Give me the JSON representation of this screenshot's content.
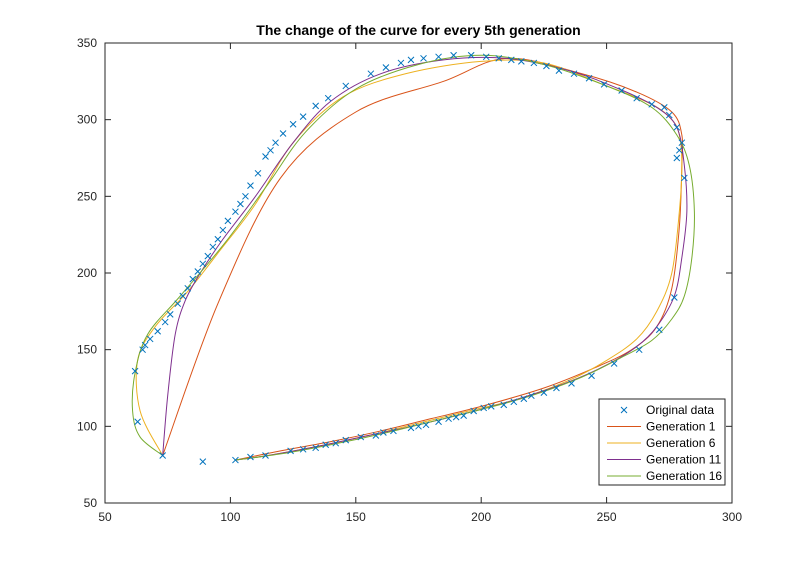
{
  "chart_data": {
    "type": "line",
    "title": "The change of the curve for every 5th generation",
    "xlabel": "",
    "ylabel": "",
    "xlim": [
      50,
      300
    ],
    "ylim": [
      50,
      350
    ],
    "xticks": [
      50,
      100,
      150,
      200,
      250,
      300
    ],
    "yticks": [
      50,
      100,
      150,
      200,
      250,
      300,
      350
    ],
    "grid": false,
    "legend_position": "bottom-right",
    "original_data": {
      "name": "Original data",
      "color": "#0072BD",
      "marker": "x",
      "x": [
        89,
        102,
        108,
        114,
        124,
        129,
        134,
        138,
        142,
        146,
        152,
        158,
        161,
        165,
        172,
        175,
        178,
        183,
        187,
        190,
        193,
        197,
        201,
        204,
        209,
        213,
        217,
        220,
        225,
        230,
        236,
        244,
        253,
        263,
        271,
        277,
        278,
        279,
        280,
        281,
        278,
        275,
        273,
        268,
        262,
        256,
        249,
        243,
        237,
        231,
        226,
        221,
        216,
        212,
        207,
        202,
        196,
        189,
        183,
        177,
        172,
        168,
        162,
        156,
        146,
        139,
        134,
        129,
        125,
        121,
        118,
        116,
        114,
        111,
        108,
        106,
        104,
        102,
        99,
        97,
        95,
        93,
        91,
        89,
        87,
        85,
        83,
        81,
        79,
        76,
        74,
        71,
        68,
        66,
        65,
        62,
        63,
        73
      ],
      "y": [
        77,
        78,
        80,
        81,
        84,
        85,
        86,
        88,
        89,
        91,
        93,
        94,
        96,
        97,
        99,
        100,
        101,
        103,
        105,
        106,
        107,
        110,
        112,
        113,
        114,
        116,
        118,
        120,
        122,
        125,
        128,
        133,
        141,
        150,
        163,
        184,
        275,
        280,
        285,
        262,
        295,
        303,
        308,
        310,
        314,
        319,
        323,
        327,
        330,
        332,
        335,
        337,
        338,
        339,
        340,
        341,
        342,
        342,
        341,
        340,
        339,
        337,
        334,
        330,
        322,
        314,
        309,
        302,
        297,
        291,
        285,
        280,
        276,
        265,
        257,
        250,
        245,
        240,
        234,
        228,
        222,
        217,
        211,
        206,
        201,
        196,
        190,
        185,
        180,
        173,
        168,
        162,
        157,
        153,
        150,
        136,
        103,
        81
      ]
    },
    "series": [
      {
        "name": "Generation 1",
        "color": "#D95319",
        "x": [
          73,
          95,
          120,
          150,
          185,
          210,
          240,
          262,
          276,
          280,
          280,
          279,
          276,
          270,
          260,
          245,
          225,
          200,
          180,
          160,
          140,
          120,
          102
        ],
        "y": [
          81,
          180,
          262,
          305,
          325,
          340,
          330,
          318,
          305,
          290,
          270,
          230,
          190,
          165,
          150,
          138,
          125,
          113,
          105,
          97,
          90,
          84,
          78
        ]
      },
      {
        "name": "Generation 6",
        "color": "#EDB120",
        "x": [
          73,
          64,
          63,
          70,
          83,
          96,
          110,
          125,
          145,
          170,
          200,
          225,
          250,
          268,
          276,
          279,
          280,
          279,
          276,
          270,
          262,
          250,
          235,
          215,
          195,
          175,
          155,
          135,
          115,
          102
        ],
        "y": [
          81,
          110,
          143,
          165,
          188,
          215,
          245,
          285,
          315,
          330,
          338,
          337,
          322,
          310,
          300,
          290,
          270,
          240,
          200,
          175,
          157,
          143,
          130,
          118,
          110,
          102,
          94,
          87,
          81,
          78
        ],
        "comment": ""
      },
      {
        "name": "Generation 11",
        "color": "#7E2F8E",
        "x": [
          73,
          75,
          78,
          82,
          88,
          97,
          110,
          125,
          140,
          160,
          185,
          210,
          235,
          255,
          270,
          278,
          281,
          282,
          280,
          277,
          270,
          262,
          250,
          235,
          215,
          195,
          175,
          155,
          135,
          115,
          102
        ],
        "y": [
          81,
          120,
          160,
          182,
          200,
          222,
          250,
          285,
          312,
          330,
          339,
          340,
          332,
          320,
          308,
          295,
          270,
          240,
          210,
          185,
          165,
          152,
          140,
          129,
          118,
          109,
          101,
          94,
          87,
          81,
          78
        ],
        "comment": ""
      },
      {
        "name": "Generation 16",
        "color": "#77AC30",
        "x": [
          73,
          64,
          61,
          62,
          67,
          80,
          98,
          115,
          130,
          150,
          175,
          200,
          225,
          250,
          268,
          278,
          283,
          285,
          284,
          281,
          276,
          268,
          256,
          240,
          220,
          200,
          180,
          160,
          140,
          120,
          102
        ],
        "y": [
          81,
          93,
          110,
          135,
          160,
          185,
          220,
          258,
          292,
          320,
          336,
          342,
          336,
          322,
          308,
          290,
          270,
          240,
          210,
          185,
          170,
          156,
          145,
          132,
          120,
          111,
          103,
          95,
          88,
          82,
          78
        ],
        "comment": ""
      }
    ]
  }
}
